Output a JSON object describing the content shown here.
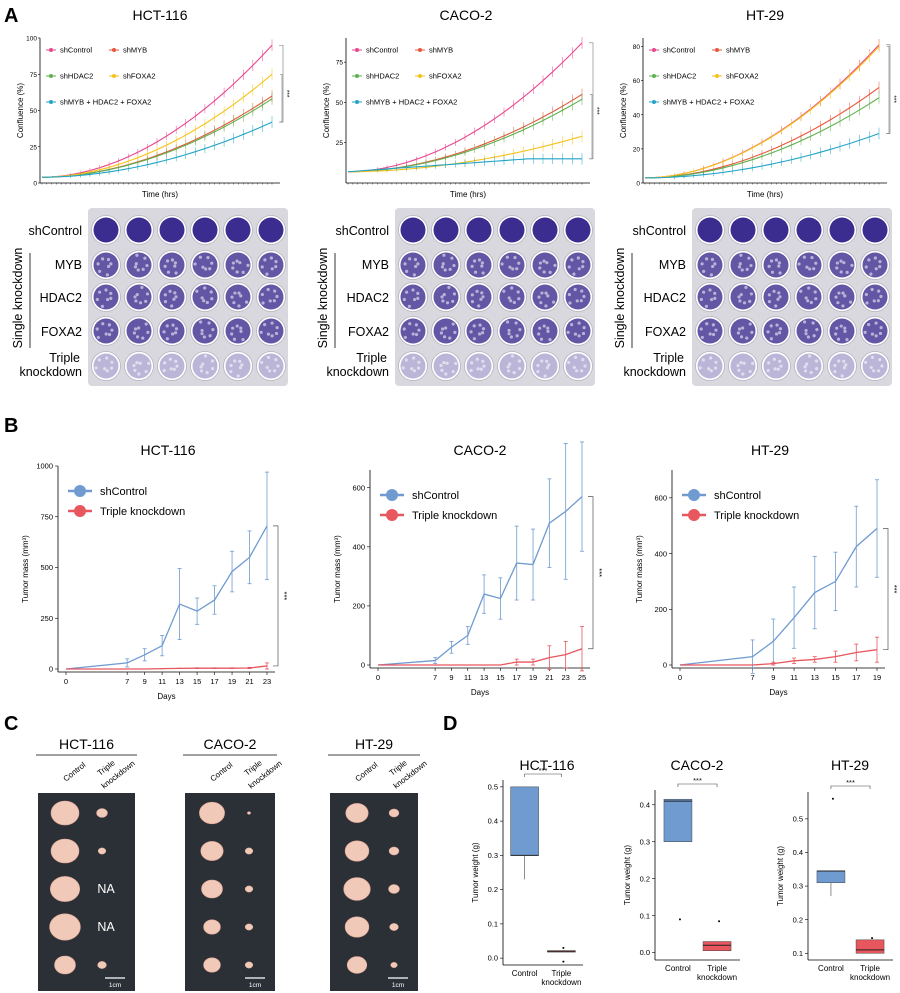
{
  "panels": {
    "A": "A",
    "B": "B",
    "C": "C",
    "D": "D"
  },
  "colors": {
    "shControl": "#e8468f",
    "shMYB": "#e8563c",
    "shHDAC2": "#5fb04f",
    "shFOXA2": "#f6c21a",
    "triple": "#22a4c6",
    "blue": "#6f9bd1",
    "red": "#e8565e",
    "stain": "#3b2c8f",
    "tissue": "#f0c9b8"
  },
  "panel_a": {
    "xlabel": "Time (hrs)",
    "ylabel": "Confluence (%)",
    "sig": "***",
    "legend": [
      "shControl",
      "shMYB",
      "shHDAC2",
      "shFOXA2",
      "shMYB + HDAC2 + FOXA2"
    ],
    "row_labels": {
      "shControl": "shControl",
      "single_group": "Single knockdown",
      "myb": "MYB",
      "hdac2": "HDAC2",
      "foxa2": "FOXA2",
      "triple_line1": "Triple",
      "triple_line2": "knockdown"
    }
  },
  "panel_b": {
    "xlabel": "Days",
    "ylabel": "Tumor mass (mm³)",
    "sig": "***",
    "legend": [
      "shControl",
      "Triple knockdown"
    ]
  },
  "panel_c": {
    "col1": "Control",
    "col2_line1": "Triple",
    "col2_line2": "knockdown",
    "na": "NA",
    "scale": "1cm",
    "titles": [
      "HCT-116",
      "CACO-2",
      "HT-29"
    ]
  },
  "panel_d": {
    "ylabel": "Tumor weight (g)",
    "sig": "***",
    "cat1": "Control",
    "cat2_line1": "Triple",
    "cat2_line2": "knockdown"
  },
  "chart_data": [
    {
      "type": "line",
      "panel": "A",
      "title": "HCT-116",
      "xlabel": "Time (hrs)",
      "ylabel": "Confluence (%)",
      "ylim": [
        0,
        100
      ],
      "yticks": [
        0,
        25,
        50,
        75,
        100
      ],
      "x_points": 49,
      "series": [
        {
          "name": "shControl",
          "final": 95
        },
        {
          "name": "shMYB",
          "final": 60
        },
        {
          "name": "shHDAC2",
          "final": 58
        },
        {
          "name": "shFOXA2",
          "final": 75
        },
        {
          "name": "shMYB + HDAC2 + FOXA2",
          "final": 42
        }
      ],
      "start": 4
    },
    {
      "type": "line",
      "panel": "A",
      "title": "CACO-2",
      "xlabel": "Time (hrs)",
      "ylabel": "Confluence (%)",
      "ylim": [
        0,
        90
      ],
      "yticks": [
        25,
        50,
        75
      ],
      "x_points": 49,
      "series": [
        {
          "name": "shControl",
          "final": 87
        },
        {
          "name": "shMYB",
          "final": 55
        },
        {
          "name": "shHDAC2",
          "final": 52
        },
        {
          "name": "shFOXA2",
          "final": 29
        },
        {
          "name": "shMYB + HDAC2 + FOXA2",
          "final": 15
        }
      ],
      "start": 7
    },
    {
      "type": "line",
      "panel": "A",
      "title": "HT-29",
      "xlabel": "Time (hrs)",
      "ylabel": "Confluence (%)",
      "ylim": [
        0,
        85
      ],
      "yticks": [
        0,
        20,
        40,
        60,
        80
      ],
      "x_points": 49,
      "series": [
        {
          "name": "shControl",
          "final": 81
        },
        {
          "name": "shMYB",
          "final": 56
        },
        {
          "name": "shHDAC2",
          "final": 50
        },
        {
          "name": "shFOXA2",
          "final": 80
        },
        {
          "name": "shMYB + HDAC2 + FOXA2",
          "final": 29
        }
      ],
      "start": 3
    },
    {
      "type": "line",
      "panel": "B",
      "title": "HCT-116",
      "xlabel": "Days",
      "ylabel": "Tumor mass (mm³)",
      "ylim": [
        0,
        1000
      ],
      "yticks": [
        0,
        250,
        500,
        750,
        1000
      ],
      "x": [
        0,
        7,
        9,
        11,
        13,
        15,
        17,
        19,
        21,
        23
      ],
      "series": [
        {
          "name": "shControl",
          "values": [
            0,
            30,
            70,
            115,
            320,
            285,
            340,
            480,
            550,
            705
          ],
          "err": [
            0,
            20,
            30,
            50,
            175,
            65,
            70,
            100,
            130,
            265
          ]
        },
        {
          "name": "Triple knockdown",
          "values": [
            0,
            0,
            0,
            2,
            3,
            4,
            4,
            4,
            5,
            15
          ],
          "err": [
            0,
            0,
            0,
            1,
            1,
            2,
            2,
            2,
            3,
            15
          ]
        }
      ]
    },
    {
      "type": "line",
      "panel": "B",
      "title": "CACO-2",
      "xlabel": "Days",
      "ylabel": "Tumor mass (mm³)",
      "ylim": [
        0,
        660
      ],
      "yticks": [
        0,
        200,
        400,
        600
      ],
      "x": [
        0,
        7,
        9,
        11,
        13,
        15,
        17,
        19,
        21,
        23,
        25
      ],
      "series": [
        {
          "name": "shControl",
          "values": [
            0,
            15,
            60,
            100,
            240,
            225,
            345,
            340,
            480,
            520,
            570
          ],
          "err": [
            0,
            10,
            20,
            30,
            65,
            70,
            125,
            120,
            150,
            230,
            185
          ]
        },
        {
          "name": "Triple knockdown",
          "values": [
            0,
            0,
            0,
            0,
            0,
            0,
            10,
            10,
            25,
            35,
            55
          ],
          "err": [
            0,
            0,
            0,
            0,
            0,
            0,
            10,
            10,
            40,
            45,
            75
          ]
        }
      ]
    },
    {
      "type": "line",
      "panel": "B",
      "title": "HT-29",
      "xlabel": "Days",
      "ylabel": "Tumor mass (mm³)",
      "ylim": [
        0,
        700
      ],
      "yticks": [
        0,
        200,
        400,
        600
      ],
      "x": [
        0,
        7,
        9,
        11,
        13,
        15,
        17,
        19
      ],
      "series": [
        {
          "name": "shControl",
          "values": [
            0,
            30,
            85,
            170,
            260,
            300,
            425,
            490
          ],
          "err": [
            0,
            60,
            80,
            110,
            130,
            105,
            145,
            175
          ]
        },
        {
          "name": "Triple knockdown",
          "values": [
            0,
            0,
            5,
            15,
            20,
            30,
            45,
            55
          ],
          "err": [
            0,
            0,
            5,
            10,
            10,
            20,
            30,
            45
          ]
        }
      ]
    },
    {
      "type": "box",
      "panel": "D",
      "title": "HCT-116",
      "ylabel": "Tumor weight (g)",
      "ylim": [
        -0.02,
        0.52
      ],
      "yticks": [
        0.0,
        0.1,
        0.2,
        0.3,
        0.4,
        0.5
      ],
      "categories": [
        "Control",
        "Triple knockdown"
      ],
      "boxes": [
        {
          "q1": 0.3,
          "median": 0.3,
          "q3": 0.5,
          "whisker_low": 0.23,
          "whisker_high": 0.5,
          "outliers": []
        },
        {
          "q1": 0.018,
          "median": 0.02,
          "q3": 0.022,
          "whisker_low": 0.018,
          "whisker_high": 0.022,
          "outliers": [
            0.03,
            -0.01
          ]
        }
      ]
    },
    {
      "type": "box",
      "panel": "D",
      "title": "CACO-2",
      "ylabel": "Tumor weight (g)",
      "ylim": [
        -0.02,
        0.44
      ],
      "yticks": [
        0.0,
        0.1,
        0.2,
        0.3,
        0.4
      ],
      "categories": [
        "Control",
        "Triple knockdown"
      ],
      "boxes": [
        {
          "q1": 0.3,
          "median": 0.41,
          "q3": 0.415,
          "whisker_low": 0.3,
          "whisker_high": 0.415,
          "outliers": [
            0.09
          ]
        },
        {
          "q1": 0.005,
          "median": 0.02,
          "q3": 0.03,
          "whisker_low": 0.005,
          "whisker_high": 0.03,
          "outliers": [
            0.085
          ]
        }
      ]
    },
    {
      "type": "box",
      "panel": "D",
      "title": "HT-29",
      "ylabel": "Tumor weight (g)",
      "ylim": [
        0.08,
        0.58
      ],
      "yticks": [
        0.1,
        0.2,
        0.3,
        0.4,
        0.5
      ],
      "categories": [
        "Control",
        "Triple knockdown"
      ],
      "boxes": [
        {
          "q1": 0.31,
          "median": 0.345,
          "q3": 0.345,
          "whisker_low": 0.27,
          "whisker_high": 0.345,
          "outliers": [
            0.56
          ]
        },
        {
          "q1": 0.1,
          "median": 0.11,
          "q3": 0.14,
          "whisker_low": 0.1,
          "whisker_high": 0.14,
          "outliers": [
            0.145
          ]
        }
      ]
    }
  ]
}
